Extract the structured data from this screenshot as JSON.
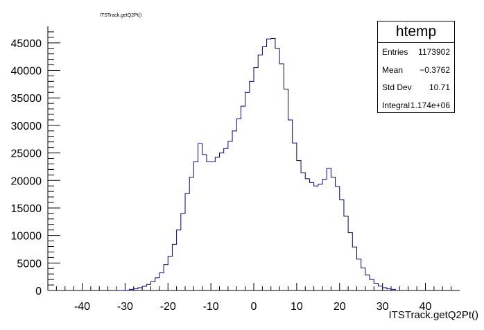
{
  "chart_data": {
    "type": "histogram",
    "title": "ITSTrack.getQ2Pt()",
    "xlabel": "ITSTrack.getQ2Pt()",
    "ylabel": "",
    "xlim": [
      -48,
      48
    ],
    "ylim": [
      0,
      48000
    ],
    "x_ticks": [
      -40,
      -30,
      -20,
      -10,
      0,
      10,
      20,
      30,
      40
    ],
    "y_ticks": [
      0,
      5000,
      10000,
      15000,
      20000,
      25000,
      30000,
      35000,
      40000,
      45000
    ],
    "grid": false,
    "line_color": "#00008b",
    "bin_width": 1,
    "bins_start": -31,
    "counts": [
      0,
      0,
      200,
      300,
      500,
      750,
      1100,
      1600,
      2300,
      3200,
      4700,
      6200,
      8400,
      11000,
      14000,
      17600,
      20600,
      23400,
      26700,
      24700,
      23400,
      23400,
      24200,
      25000,
      25800,
      27100,
      29000,
      31200,
      33500,
      36000,
      38000,
      40500,
      42800,
      44300,
      45700,
      45800,
      44000,
      41200,
      36600,
      31000,
      26800,
      23600,
      21400,
      20300,
      19600,
      19000,
      19300,
      20200,
      22200,
      20600,
      18900,
      16500,
      13500,
      10500,
      7900,
      5700,
      4100,
      2800,
      2000,
      1300,
      800,
      500,
      300,
      200,
      0
    ]
  },
  "stats": {
    "name": "htemp",
    "rows": [
      {
        "label": "Entries",
        "value": "1173902"
      },
      {
        "label": "Mean",
        "value": "−0.3762"
      },
      {
        "label": "Std Dev",
        "value": "10.71"
      },
      {
        "label": "Integral",
        "value": "1.174e+06"
      }
    ]
  }
}
